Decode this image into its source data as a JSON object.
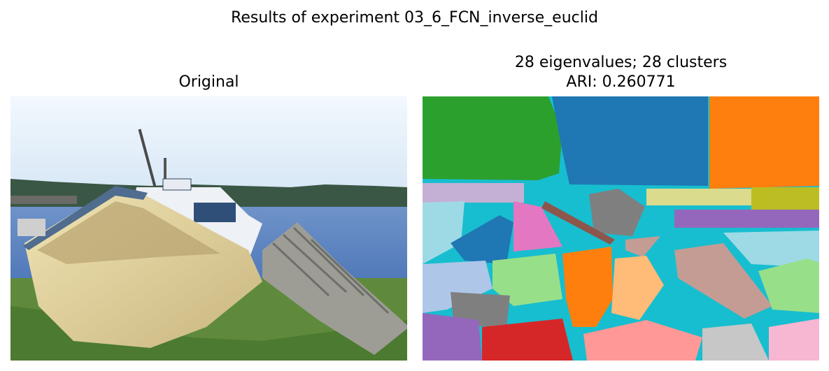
{
  "figure": {
    "title": "Results of experiment 03_6_FCN_inverse_euclid"
  },
  "left_panel": {
    "title": "Original",
    "content": "photo-boat"
  },
  "right_panel": {
    "title_line1": "28 eigenvalues; 28 clusters",
    "title_line2": "ARI: 0.260771",
    "content": "segmentation-map"
  },
  "colors": {
    "cluster_background": "#17becf",
    "sky": "#ddeefb",
    "water": "#5f86c2",
    "treeline": "#35503f",
    "grass": "#5f8a3c",
    "boat_hull": "#e7d9a6",
    "boat_trim": "#4e6b8e",
    "cabin": "#f1f3f6",
    "trap": "#9b9b95",
    "green_cluster": "#2ca02c",
    "blue_cluster": "#1f77b4",
    "orange_cluster": "#ff7f0e",
    "red_cluster": "#d62728",
    "purple_cluster": "#9467bd",
    "brown_cluster": "#8c564b",
    "pink_cluster": "#e377c2",
    "gray_cluster": "#7f7f7f",
    "olive_cluster": "#bcbd22",
    "light_blue_cluster": "#aec7e8",
    "light_orange_cluster": "#ffbb78",
    "light_green_cluster": "#98df8a",
    "salmon_cluster": "#ff9896",
    "lavender_cluster": "#c5b0d5",
    "tan_cluster": "#c49c94",
    "light_pink_cluster": "#f7b6d2",
    "silver_cluster": "#c7c7c7",
    "khaki_cluster": "#dbdb8d",
    "pale_cyan_cluster": "#9edae5"
  }
}
